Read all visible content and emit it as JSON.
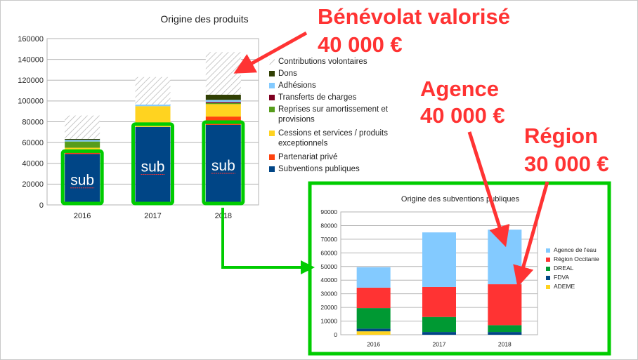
{
  "chart_data": [
    {
      "type": "bar",
      "stacked": true,
      "title": "Origine des produits",
      "categories": [
        "2016",
        "2017",
        "2018"
      ],
      "ylim": [
        0,
        160000
      ],
      "yticks": [
        "0",
        "20000",
        "40000",
        "60000",
        "80000",
        "100000",
        "120000",
        "140000",
        "160000"
      ],
      "grid": true,
      "legend_position": "right",
      "series": [
        {
          "name": "Subventions publiques",
          "color": "#004586",
          "values": [
            49000,
            75000,
            77000
          ]
        },
        {
          "name": "Partenariat privé",
          "color": "#ff420e",
          "values": [
            3000,
            0,
            8000
          ]
        },
        {
          "name": "Cessions et services / produits exceptionnels",
          "color": "#ffd320",
          "values": [
            3000,
            20000,
            12000
          ]
        },
        {
          "name": "Reprises sur amortissement et provisions",
          "color": "#579d1c",
          "values": [
            6000,
            0,
            1000
          ]
        },
        {
          "name": "Transferts de charges",
          "color": "#7e0021",
          "values": [
            0,
            0,
            1000
          ]
        },
        {
          "name": "Adhésions",
          "color": "#83caff",
          "values": [
            1500,
            1500,
            2000
          ]
        },
        {
          "name": "Dons",
          "color": "#314004",
          "values": [
            1000,
            0,
            5000
          ]
        },
        {
          "name": "Contributions volontaires",
          "color": "hatch",
          "values": [
            22500,
            26500,
            41000
          ]
        }
      ],
      "box_label": "sub"
    },
    {
      "type": "bar",
      "stacked": true,
      "title": "Origine des subventions publiques",
      "categories": [
        "2016",
        "2017",
        "2018"
      ],
      "ylim": [
        0,
        90000
      ],
      "yticks": [
        "0",
        "10000",
        "20000",
        "30000",
        "40000",
        "50000",
        "60000",
        "70000",
        "80000",
        "90000"
      ],
      "grid": true,
      "legend_position": "right",
      "series": [
        {
          "name": "ADEME",
          "color": "#ffd320",
          "values": [
            2500,
            0,
            0
          ]
        },
        {
          "name": "FDVA",
          "color": "#004586",
          "values": [
            2000,
            2000,
            2000
          ]
        },
        {
          "name": "DREAL",
          "color": "#009933",
          "values": [
            15000,
            11000,
            5000
          ]
        },
        {
          "name": "Région Occitanie",
          "color": "#ff3333",
          "values": [
            15000,
            22000,
            30000
          ]
        },
        {
          "name": "Agence de l'eau",
          "color": "#83caff",
          "values": [
            15000,
            40000,
            40000
          ]
        }
      ]
    }
  ],
  "annotations": {
    "benevolat": [
      "Bénévolat valorisé",
      "40 000 €"
    ],
    "agence": [
      "Agence",
      "40 000 €"
    ],
    "region": [
      "Région",
      "30 000 €"
    ]
  },
  "colors": {
    "highlight": "#00cc00",
    "annotation": "#ff3333"
  }
}
